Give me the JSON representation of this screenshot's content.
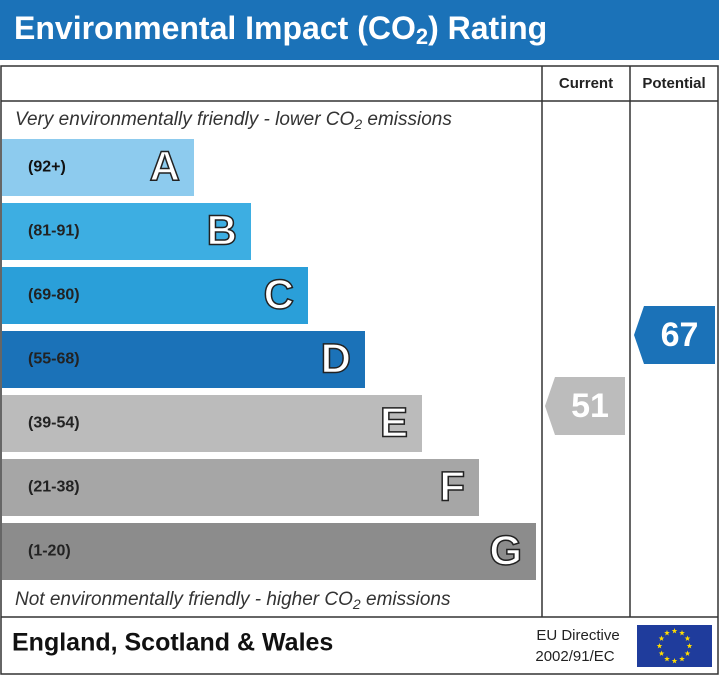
{
  "title": {
    "before": "Environmental Impact (CO",
    "sub": "2",
    "after": ") Rating"
  },
  "columns": {
    "current": "Current",
    "potential": "Potential"
  },
  "top_note": {
    "before": "Very environmentally friendly - lower CO",
    "sub": "2",
    "after": " emissions"
  },
  "bottom_note": {
    "before": "Not environmentally friendly - higher CO",
    "sub": "2",
    "after": " emissions"
  },
  "bands": [
    {
      "range": "(92+)",
      "letter": "A",
      "color": "#8dcbee"
    },
    {
      "range": "(81-91)",
      "letter": "B",
      "color": "#3daee2"
    },
    {
      "range": "(69-80)",
      "letter": "C",
      "color": "#2a9fd9"
    },
    {
      "range": "(55-68)",
      "letter": "D",
      "color": "#1b72b8"
    },
    {
      "range": "(39-54)",
      "letter": "E",
      "color": "#bbbbbb"
    },
    {
      "range": "(21-38)",
      "letter": "F",
      "color": "#a6a6a6"
    },
    {
      "range": "(1-20)",
      "letter": "G",
      "color": "#8c8c8c"
    }
  ],
  "current": {
    "value": 51,
    "color": "#bcbcbc"
  },
  "potential": {
    "value": 67,
    "color": "#1b72b8"
  },
  "footer": {
    "region": "England, Scotland & Wales",
    "directive_line1": "EU Directive",
    "directive_line2": "2002/91/EC"
  }
}
